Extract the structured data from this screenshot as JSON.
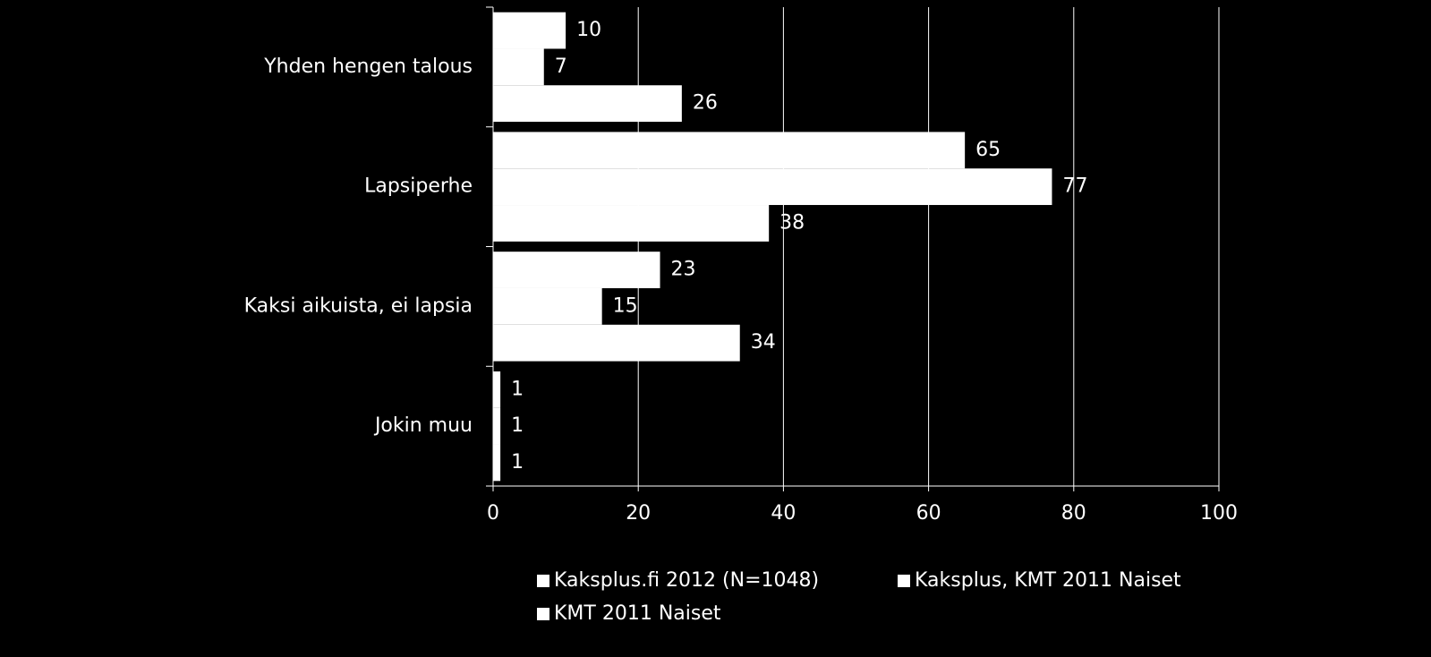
{
  "chart_data": {
    "type": "bar",
    "orientation": "horizontal",
    "categories": [
      "Yhden hengen talous",
      "Lapsiperhe",
      "Kaksi aikuista, ei lapsia",
      "Jokin muu"
    ],
    "series": [
      {
        "name": "Kaksplus.fi 2012 (N=1048)",
        "color": "#ffffff",
        "values": [
          10,
          65,
          23,
          1
        ]
      },
      {
        "name": "Kaksplus, KMT 2011 Naiset",
        "color": "#ffffff",
        "values": [
          7,
          77,
          15,
          1
        ]
      },
      {
        "name": "KMT 2011 Naiset",
        "color": "#ffffff",
        "values": [
          26,
          38,
          34,
          1
        ]
      }
    ],
    "xlim": [
      0,
      100
    ],
    "xticks": [
      0,
      20,
      40,
      60,
      80,
      100
    ],
    "grid": true,
    "legend": "bottom"
  }
}
